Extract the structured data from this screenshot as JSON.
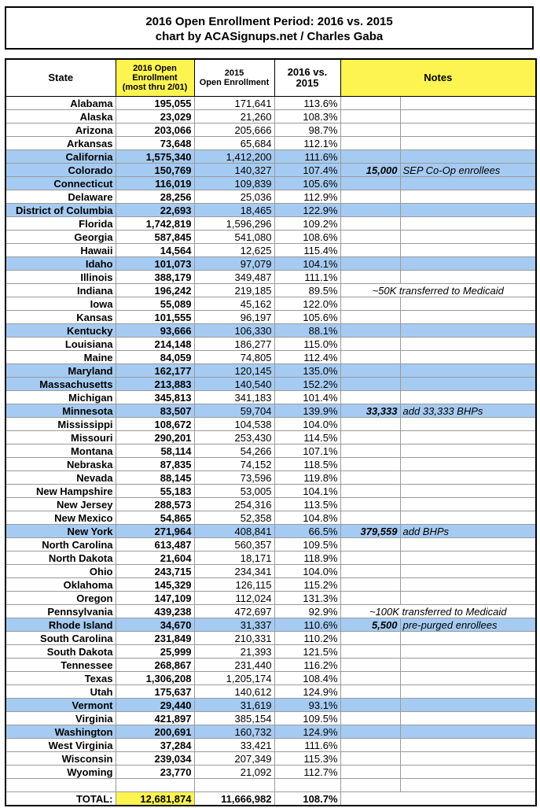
{
  "header": {
    "title": "2016 Open Enrollment Period: 2016 vs. 2015",
    "subtitle": "chart by ACASignups.net / Charles Gaba"
  },
  "table": {
    "columns": [
      [
        "State"
      ],
      [
        "2016 Open",
        "Enrollment",
        "(most thru 2/01)"
      ],
      [
        "2015",
        "Open Enrollment"
      ],
      [
        "2016 vs.",
        "2015"
      ],
      [
        "Notes"
      ]
    ],
    "rows": [
      [
        "Alabama",
        "195,055",
        "171,641",
        "113.6%"
      ],
      [
        "Alaska",
        "23,029",
        "21,260",
        "108.3%"
      ],
      [
        "Arizona",
        "203,066",
        "205,666",
        "98.7%"
      ],
      [
        "Arkansas",
        "73,648",
        "65,684",
        "112.1%"
      ],
      [
        "California",
        "1,575,340",
        "1,412,200",
        "111.6%"
      ],
      [
        "Colorado",
        "150,769",
        "140,327",
        "107.4%",
        "15,000",
        "SEP Co-Op enrollees"
      ],
      [
        "Connecticut",
        "116,019",
        "109,839",
        "105.6%"
      ],
      [
        "Delaware",
        "28,256",
        "25,036",
        "112.9%"
      ],
      [
        "District of Columbia",
        "22,693",
        "18,465",
        "122.9%"
      ],
      [
        "Florida",
        "1,742,819",
        "1,596,296",
        "109.2%"
      ],
      [
        "Georgia",
        "587,845",
        "541,080",
        "108.6%"
      ],
      [
        "Hawaii",
        "14,564",
        "12,625",
        "115.4%"
      ],
      [
        "Idaho",
        "101,073",
        "97,079",
        "104.1%"
      ],
      [
        "Illinois",
        "388,179",
        "349,487",
        "111.1%"
      ],
      [
        "Indiana",
        "196,242",
        "219,185",
        "89.5%",
        "~50K transferred to Medicaid"
      ],
      [
        "Iowa",
        "55,089",
        "45,162",
        "122.0%"
      ],
      [
        "Kansas",
        "101,555",
        "96,197",
        "105.6%"
      ],
      [
        "Kentucky",
        "93,666",
        "106,330",
        "88.1%"
      ],
      [
        "Louisiana",
        "214,148",
        "186,277",
        "115.0%"
      ],
      [
        "Maine",
        "84,059",
        "74,805",
        "112.4%"
      ],
      [
        "Maryland",
        "162,177",
        "120,145",
        "135.0%"
      ],
      [
        "Massachusetts",
        "213,883",
        "140,540",
        "152.2%"
      ],
      [
        "Michigan",
        "345,813",
        "341,183",
        "101.4%"
      ],
      [
        "Minnesota",
        "83,507",
        "59,704",
        "139.9%",
        "33,333",
        "add 33,333 BHPs"
      ],
      [
        "Mississippi",
        "108,672",
        "104,538",
        "104.0%"
      ],
      [
        "Missouri",
        "290,201",
        "253,430",
        "114.5%"
      ],
      [
        "Montana",
        "58,114",
        "54,266",
        "107.1%"
      ],
      [
        "Nebraska",
        "87,835",
        "74,152",
        "118.5%"
      ],
      [
        "Nevada",
        "88,145",
        "73,596",
        "119.8%"
      ],
      [
        "New Hampshire",
        "55,183",
        "53,005",
        "104.1%"
      ],
      [
        "New Jersey",
        "288,573",
        "254,316",
        "113.5%"
      ],
      [
        "New Mexico",
        "54,865",
        "52,358",
        "104.8%"
      ],
      [
        "New York",
        "271,964",
        "408,841",
        "66.5%",
        "379,559",
        "add BHPs"
      ],
      [
        "North Carolina",
        "613,487",
        "560,357",
        "109.5%"
      ],
      [
        "North Dakota",
        "21,604",
        "18,171",
        "118.9%"
      ],
      [
        "Ohio",
        "243,715",
        "234,341",
        "104.0%"
      ],
      [
        "Oklahoma",
        "145,329",
        "126,115",
        "115.2%"
      ],
      [
        "Oregon",
        "147,109",
        "112,024",
        "131.3%"
      ],
      [
        "Pennsylvania",
        "439,238",
        "472,697",
        "92.9%",
        "~100K transferred to Medicaid"
      ],
      [
        "Rhode Island",
        "34,670",
        "31,337",
        "110.6%",
        "5,500",
        "pre-purged enrollees"
      ],
      [
        "South Carolina",
        "231,849",
        "210,331",
        "110.2%"
      ],
      [
        "South Dakota",
        "25,999",
        "21,393",
        "121.5%"
      ],
      [
        "Tennessee",
        "268,867",
        "231,440",
        "116.2%"
      ],
      [
        "Texas",
        "1,306,208",
        "1,205,174",
        "108.4%"
      ],
      [
        "Utah",
        "175,637",
        "140,612",
        "124.9%"
      ],
      [
        "Vermont",
        "29,440",
        "31,619",
        "93.1%"
      ],
      [
        "Virginia",
        "421,897",
        "385,154",
        "109.5%"
      ],
      [
        "Washington",
        "200,691",
        "160,732",
        "124.9%"
      ],
      [
        "West Virginia",
        "37,284",
        "33,421",
        "111.6%"
      ],
      [
        "Wisconsin",
        "239,034",
        "207,349",
        "115.3%"
      ],
      [
        "Wyoming",
        "23,770",
        "21,092",
        "112.7%"
      ]
    ],
    "highlight_rows": [
      4,
      5,
      6,
      8,
      12,
      17,
      20,
      21,
      23,
      32,
      39,
      45,
      47
    ],
    "total": [
      "TOTAL:",
      "12,681,874",
      "11,666,982",
      "108.7%"
    ]
  }
}
